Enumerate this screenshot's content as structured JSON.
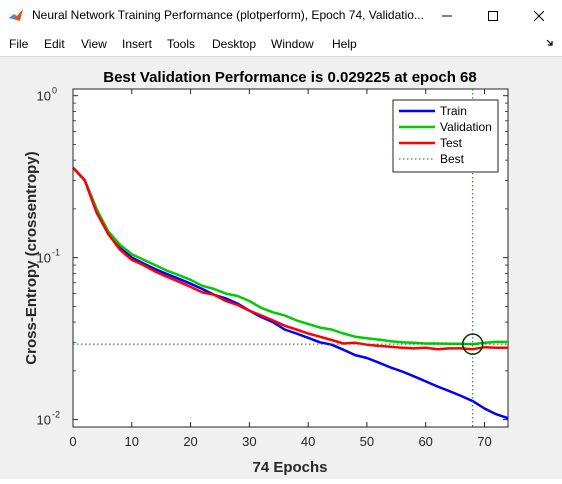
{
  "window": {
    "title": "Neural Network Training Performance (plotperform), Epoch 74, Validatio..."
  },
  "menu": {
    "items": [
      "File",
      "Edit",
      "View",
      "Insert",
      "Tools",
      "Desktop",
      "Window",
      "Help"
    ]
  },
  "icons": {
    "app": "matlab-icon",
    "minimize": "minimize-icon",
    "maximize": "maximize-icon",
    "close": "close-icon",
    "dock": "dock-arrow-icon"
  },
  "chart_data": {
    "type": "line",
    "title": "Best Validation Performance is 0.029225 at epoch 68",
    "xlabel": "74 Epochs",
    "ylabel": "Cross-Entropy  (crossentropy)",
    "xlim": [
      0,
      74
    ],
    "ylim": [
      0.009,
      1.1
    ],
    "yscale": "log",
    "grid": false,
    "legend_position": "top-right",
    "x_ticks": [
      0,
      10,
      20,
      30,
      40,
      50,
      60,
      70
    ],
    "y_ticks": [
      {
        "value": 0.01,
        "base": "10",
        "exp": "-2"
      },
      {
        "value": 0.1,
        "base": "10",
        "exp": "-1"
      },
      {
        "value": 1,
        "base": "10",
        "exp": "0"
      }
    ],
    "series": [
      {
        "name": "Train",
        "color": "#0000ff",
        "x": [
          0,
          2,
          4,
          6,
          8,
          10,
          12,
          14,
          16,
          18,
          20,
          22,
          24,
          26,
          28,
          30,
          32,
          34,
          36,
          38,
          40,
          42,
          44,
          46,
          48,
          50,
          52,
          54,
          56,
          58,
          60,
          62,
          64,
          66,
          68,
          70,
          72,
          74
        ],
        "y": [
          0.36,
          0.3,
          0.2,
          0.14,
          0.115,
          0.1,
          0.092,
          0.085,
          0.079,
          0.074,
          0.069,
          0.064,
          0.059,
          0.056,
          0.052,
          0.047,
          0.043,
          0.04,
          0.036,
          0.034,
          0.032,
          0.03,
          0.029,
          0.027,
          0.025,
          0.024,
          0.0225,
          0.021,
          0.0198,
          0.0185,
          0.0172,
          0.016,
          0.015,
          0.014,
          0.013,
          0.0117,
          0.0108,
          0.0102
        ]
      },
      {
        "name": "Validation",
        "color": "#00cc00",
        "x": [
          0,
          2,
          4,
          6,
          8,
          10,
          12,
          14,
          16,
          18,
          20,
          22,
          24,
          26,
          28,
          30,
          32,
          34,
          36,
          38,
          40,
          42,
          44,
          46,
          48,
          50,
          52,
          54,
          56,
          58,
          60,
          62,
          64,
          66,
          68,
          70,
          72,
          74
        ],
        "y": [
          0.36,
          0.3,
          0.2,
          0.145,
          0.12,
          0.105,
          0.097,
          0.09,
          0.083,
          0.078,
          0.073,
          0.067,
          0.064,
          0.06,
          0.058,
          0.054,
          0.049,
          0.046,
          0.044,
          0.041,
          0.039,
          0.037,
          0.036,
          0.034,
          0.0325,
          0.0318,
          0.0312,
          0.0305,
          0.03,
          0.0298,
          0.0295,
          0.0295,
          0.0294,
          0.0294,
          0.0292,
          0.0298,
          0.0302,
          0.0302
        ]
      },
      {
        "name": "Test",
        "color": "#ff0000",
        "x": [
          0,
          2,
          4,
          6,
          8,
          10,
          12,
          14,
          16,
          18,
          20,
          22,
          24,
          26,
          28,
          30,
          32,
          34,
          36,
          38,
          40,
          42,
          44,
          46,
          48,
          50,
          52,
          54,
          56,
          58,
          60,
          62,
          64,
          66,
          68,
          70,
          72,
          74
        ],
        "y": [
          0.36,
          0.3,
          0.19,
          0.14,
          0.112,
          0.097,
          0.09,
          0.082,
          0.076,
          0.071,
          0.066,
          0.061,
          0.059,
          0.054,
          0.051,
          0.047,
          0.044,
          0.041,
          0.038,
          0.036,
          0.034,
          0.0325,
          0.031,
          0.0295,
          0.0298,
          0.029,
          0.0285,
          0.0282,
          0.0278,
          0.0275,
          0.0278,
          0.0272,
          0.0275,
          0.0275,
          0.0272,
          0.028,
          0.0278,
          0.0278
        ]
      }
    ],
    "best": {
      "name": "Best",
      "epoch": 68,
      "value": 0.029225,
      "color": "#008000"
    }
  }
}
